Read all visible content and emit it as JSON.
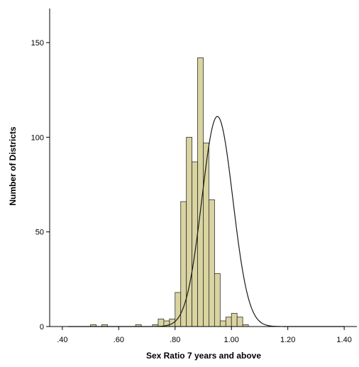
{
  "chart_data": {
    "type": "bar",
    "title": "",
    "xlabel": "Sex Ratio 7 years and above",
    "ylabel": "Number of Districts",
    "xlim": [
      0.355,
      1.445
    ],
    "ylim": [
      0,
      168
    ],
    "x_ticks": [
      {
        "value": 0.4,
        "label": ".40"
      },
      {
        "value": 0.6,
        "label": ".60"
      },
      {
        "value": 0.8,
        "label": ".80"
      },
      {
        "value": 1.0,
        "label": "1.00"
      },
      {
        "value": 1.2,
        "label": "1.20"
      },
      {
        "value": 1.4,
        "label": "1.40"
      }
    ],
    "y_ticks": [
      {
        "value": 0,
        "label": "0"
      },
      {
        "value": 50,
        "label": "50"
      },
      {
        "value": 100,
        "label": "100"
      },
      {
        "value": 150,
        "label": "150"
      }
    ],
    "bin_width": 0.02,
    "bins": [
      {
        "start": 0.5,
        "count": 1
      },
      {
        "start": 0.54,
        "count": 1
      },
      {
        "start": 0.66,
        "count": 1
      },
      {
        "start": 0.72,
        "count": 1
      },
      {
        "start": 0.74,
        "count": 4
      },
      {
        "start": 0.76,
        "count": 3
      },
      {
        "start": 0.78,
        "count": 4
      },
      {
        "start": 0.8,
        "count": 18
      },
      {
        "start": 0.82,
        "count": 66
      },
      {
        "start": 0.84,
        "count": 100
      },
      {
        "start": 0.86,
        "count": 87
      },
      {
        "start": 0.88,
        "count": 142
      },
      {
        "start": 0.9,
        "count": 97
      },
      {
        "start": 0.92,
        "count": 67
      },
      {
        "start": 0.94,
        "count": 28
      },
      {
        "start": 0.96,
        "count": 3
      },
      {
        "start": 0.98,
        "count": 5
      },
      {
        "start": 1.0,
        "count": 7
      },
      {
        "start": 1.02,
        "count": 5
      },
      {
        "start": 1.04,
        "count": 1
      }
    ],
    "normal_curve": {
      "shown": true,
      "peak": 111,
      "center": 0.95,
      "sd": 0.055
    },
    "grid": false,
    "legend": "none",
    "colors": {
      "bar_fill": "#d9d4a0",
      "bar_stroke": "#2f2f2f",
      "curve": "#1a1a1a",
      "axis": "#000000"
    }
  }
}
